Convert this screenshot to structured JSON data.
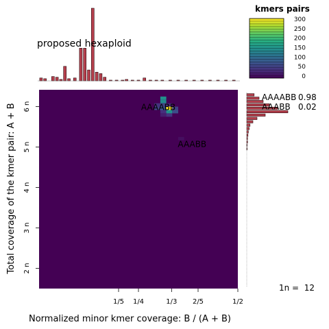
{
  "chart_data": {
    "type": "heatmap",
    "title": "proposed hexaploid",
    "xlabel": "Normalized minor kmer coverage: B / (A + B)",
    "ylabel": "Total coverage of the kmer pair: A + B",
    "x_ticks": [
      {
        "label": "1/5",
        "value": 0.2
      },
      {
        "label": "1/4",
        "value": 0.25
      },
      {
        "label": "1/3",
        "value": 0.3333
      },
      {
        "label": "2/5",
        "value": 0.4
      },
      {
        "label": "1/2",
        "value": 0.5
      }
    ],
    "y_ticks": [
      {
        "label": "2 n",
        "value": 24
      },
      {
        "label": "3 n",
        "value": 36
      },
      {
        "label": "4 n",
        "value": 48
      },
      {
        "label": "5 n",
        "value": 60
      },
      {
        "label": "6 n",
        "value": 72
      }
    ],
    "xlim": [
      0,
      0.5
    ],
    "ylim": [
      18,
      77
    ],
    "legend": {
      "title": "kmers pairs",
      "ticks": [
        "300",
        "250",
        "200",
        "150",
        "100",
        "50",
        "0"
      ],
      "max": 300
    },
    "heatmap_cells": [
      {
        "x": 0.3125,
        "y": 74.5,
        "count": 150
      },
      {
        "x": 0.3125,
        "y": 73.5,
        "count": 140
      },
      {
        "x": 0.3125,
        "y": 72.5,
        "count": 60
      },
      {
        "x": 0.2975,
        "y": 72.5,
        "count": 45
      },
      {
        "x": 0.3275,
        "y": 72.5,
        "count": 35
      },
      {
        "x": 0.2975,
        "y": 71.5,
        "count": 60
      },
      {
        "x": 0.3125,
        "y": 71.5,
        "count": 80
      },
      {
        "x": 0.3275,
        "y": 71.5,
        "count": 300
      },
      {
        "x": 0.3425,
        "y": 71.5,
        "count": 60
      },
      {
        "x": 0.3125,
        "y": 70.5,
        "count": 40
      },
      {
        "x": 0.3275,
        "y": 70.5,
        "count": 150
      },
      {
        "x": 0.3425,
        "y": 70.5,
        "count": 70
      },
      {
        "x": 0.3125,
        "y": 69.5,
        "count": 25
      },
      {
        "x": 0.3275,
        "y": 69.5,
        "count": 45
      },
      {
        "x": 0.3575,
        "y": 62.5,
        "count": 12
      }
    ],
    "peak_labels": [
      {
        "text": "AAAABB",
        "x": 0.3,
        "y": 71
      },
      {
        "text": "AAABB",
        "x": 0.385,
        "y": 60
      }
    ],
    "top_histogram": {
      "bins": [
        0.005,
        0.015,
        0.035,
        0.045,
        0.055,
        0.065,
        0.075,
        0.09,
        0.105,
        0.115,
        0.125,
        0.135,
        0.145,
        0.155,
        0.165,
        0.18,
        0.195,
        0.21,
        0.22,
        0.235,
        0.25,
        0.265,
        0.28,
        0.295,
        0.31,
        0.33,
        0.35,
        0.37,
        0.39,
        0.41,
        0.43,
        0.45,
        0.47,
        0.49
      ],
      "values": [
        4,
        3,
        6,
        5,
        2,
        20,
        3,
        4,
        45,
        45,
        15,
        100,
        12,
        10,
        5,
        1,
        1,
        1,
        2,
        1,
        1,
        4,
        1,
        1,
        1,
        1,
        1,
        1,
        1,
        1,
        1,
        1,
        1,
        1
      ]
    },
    "side_histogram": {
      "bins": [
        75.5,
        74.5,
        73.5,
        72.5,
        71.5,
        70.5,
        69.5,
        68.5,
        67.5,
        66.5,
        65.5,
        64.5,
        63.5,
        62.5,
        61.5,
        60.5,
        59.5
      ],
      "values": [
        18,
        30,
        40,
        55,
        75,
        100,
        45,
        25,
        15,
        8,
        6,
        4,
        3,
        2,
        2,
        1,
        1
      ]
    },
    "stats": [
      {
        "label": "AAAABB",
        "value": "0.98"
      },
      {
        "label": "AAABB",
        "value": "0.02"
      }
    ],
    "footnote": "1n =  12",
    "colors": {
      "background_cell": "#440154",
      "bar_fill": "#b5404d",
      "bar_stroke": "#2b0c0f"
    }
  }
}
